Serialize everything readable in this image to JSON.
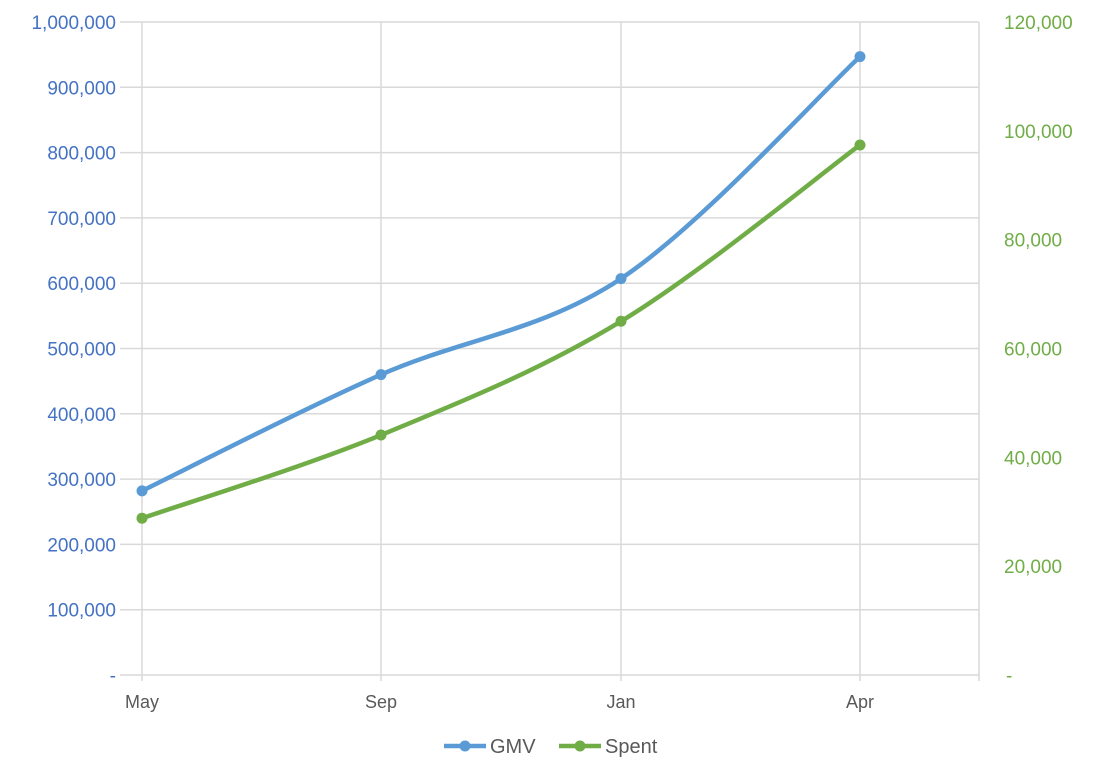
{
  "chart_data": {
    "type": "line",
    "title": "",
    "xlabel": "",
    "categories": [
      "May",
      "Sep",
      "Jan",
      "Apr"
    ],
    "y_left": {
      "ylabel": "",
      "ylim": [
        0,
        1000000
      ],
      "ticks": [
        0,
        100000,
        200000,
        300000,
        400000,
        500000,
        600000,
        700000,
        800000,
        900000,
        1000000
      ],
      "tick_labels": [
        "-",
        "100,000",
        "200,000",
        "300,000",
        "400,000",
        "500,000",
        "600,000",
        "700,000",
        "800,000",
        "900,000",
        "1,000,000"
      ],
      "color": "#4472C4"
    },
    "y_right": {
      "ylabel": "",
      "ylim": [
        0,
        120000
      ],
      "ticks": [
        0,
        20000,
        40000,
        60000,
        80000,
        100000,
        120000
      ],
      "tick_labels": [
        "-",
        "20,000",
        "40,000",
        "60,000",
        "80,000",
        "100,000",
        "120,000"
      ],
      "color": "#70AD47"
    },
    "series": [
      {
        "name": "GMV",
        "axis": "left",
        "color": "#5B9BD5",
        "values": [
          282000,
          460000,
          607000,
          947000
        ]
      },
      {
        "name": "Spent",
        "axis": "right",
        "color": "#70AD47",
        "values": [
          28800,
          44100,
          65000,
          97400
        ]
      }
    ],
    "grid": true,
    "smooth": true,
    "legend": {
      "position": "bottom",
      "entries": [
        "GMV",
        "Spent"
      ]
    }
  }
}
